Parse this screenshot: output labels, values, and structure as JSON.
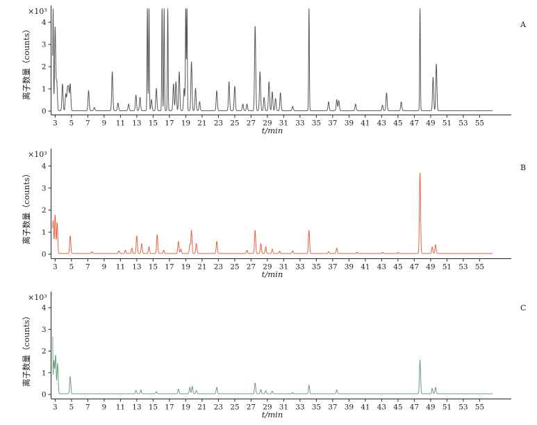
{
  "chart_data": [
    {
      "type": "line",
      "panel_label": "A",
      "scale_label": "×10³",
      "xlabel": "t/min",
      "ylabel": "离子数量（counts）",
      "xlim": [
        2.5,
        57
      ],
      "ylim": [
        0,
        4.6
      ],
      "x_ticks": [
        3,
        5,
        7,
        9,
        11,
        13,
        15,
        17,
        19,
        21,
        23,
        25,
        27,
        29,
        31,
        33,
        35,
        37,
        39,
        41,
        43,
        45,
        47,
        49,
        51,
        53,
        55
      ],
      "y_ticks": [
        0,
        1,
        2,
        3,
        4
      ],
      "color": "#555555",
      "baseline": 0.02,
      "peaks": [
        {
          "x": 2.75,
          "y": 4.6
        },
        {
          "x": 3.0,
          "y": 3.75
        },
        {
          "x": 3.2,
          "y": 1.3
        },
        {
          "x": 3.9,
          "y": 1.2
        },
        {
          "x": 4.3,
          "y": 0.75
        },
        {
          "x": 4.5,
          "y": 0.95
        },
        {
          "x": 4.65,
          "y": 1.0
        },
        {
          "x": 4.85,
          "y": 1.2
        },
        {
          "x": 7.1,
          "y": 0.9
        },
        {
          "x": 7.8,
          "y": 0.15
        },
        {
          "x": 10.0,
          "y": 1.75
        },
        {
          "x": 10.7,
          "y": 0.35
        },
        {
          "x": 12.0,
          "y": 0.3
        },
        {
          "x": 12.9,
          "y": 0.7
        },
        {
          "x": 13.4,
          "y": 0.6
        },
        {
          "x": 14.3,
          "y": 4.6
        },
        {
          "x": 14.5,
          "y": 4.6
        },
        {
          "x": 14.8,
          "y": 0.5
        },
        {
          "x": 15.4,
          "y": 1.0
        },
        {
          "x": 16.1,
          "y": 4.6
        },
        {
          "x": 16.35,
          "y": 4.6
        },
        {
          "x": 16.8,
          "y": 4.6
        },
        {
          "x": 17.5,
          "y": 1.2
        },
        {
          "x": 17.8,
          "y": 1.3
        },
        {
          "x": 18.2,
          "y": 1.75
        },
        {
          "x": 18.8,
          "y": 1.0
        },
        {
          "x": 19.0,
          "y": 4.6
        },
        {
          "x": 19.15,
          "y": 4.6
        },
        {
          "x": 19.7,
          "y": 2.2
        },
        {
          "x": 20.2,
          "y": 1.0
        },
        {
          "x": 20.7,
          "y": 0.4
        },
        {
          "x": 22.8,
          "y": 0.9
        },
        {
          "x": 24.3,
          "y": 1.3
        },
        {
          "x": 25.0,
          "y": 1.1
        },
        {
          "x": 26.0,
          "y": 0.3
        },
        {
          "x": 26.5,
          "y": 0.3
        },
        {
          "x": 27.5,
          "y": 3.8
        },
        {
          "x": 28.1,
          "y": 1.75
        },
        {
          "x": 28.6,
          "y": 0.6
        },
        {
          "x": 29.2,
          "y": 1.3
        },
        {
          "x": 29.6,
          "y": 0.85
        },
        {
          "x": 30.0,
          "y": 0.55
        },
        {
          "x": 30.6,
          "y": 0.8
        },
        {
          "x": 32.1,
          "y": 0.2
        },
        {
          "x": 34.1,
          "y": 4.6
        },
        {
          "x": 36.5,
          "y": 0.4
        },
        {
          "x": 37.5,
          "y": 0.5
        },
        {
          "x": 37.75,
          "y": 0.45
        },
        {
          "x": 39.8,
          "y": 0.3
        },
        {
          "x": 43.1,
          "y": 0.25
        },
        {
          "x": 43.6,
          "y": 0.8
        },
        {
          "x": 45.4,
          "y": 0.4
        },
        {
          "x": 47.7,
          "y": 4.6
        },
        {
          "x": 49.3,
          "y": 1.5
        },
        {
          "x": 49.7,
          "y": 2.1
        }
      ]
    },
    {
      "type": "line",
      "panel_label": "B",
      "scale_label": "×10³",
      "xlabel": "t/min",
      "ylabel": "离子数量（counts）",
      "xlim": [
        2.5,
        57
      ],
      "ylim": [
        0,
        4.6
      ],
      "x_ticks": [
        3,
        5,
        7,
        9,
        11,
        13,
        15,
        17,
        19,
        21,
        23,
        25,
        27,
        29,
        31,
        33,
        35,
        37,
        39,
        41,
        43,
        45,
        47,
        49,
        51,
        53,
        55
      ],
      "y_ticks": [
        0,
        1,
        2,
        3,
        4
      ],
      "color": "#e8623f",
      "baseline": 0.03,
      "peaks": [
        {
          "x": 2.75,
          "y": 1.5
        },
        {
          "x": 3.0,
          "y": 1.75
        },
        {
          "x": 3.25,
          "y": 1.4
        },
        {
          "x": 4.85,
          "y": 0.8
        },
        {
          "x": 7.5,
          "y": 0.08
        },
        {
          "x": 10.8,
          "y": 0.12
        },
        {
          "x": 11.6,
          "y": 0.15
        },
        {
          "x": 12.4,
          "y": 0.25
        },
        {
          "x": 13.0,
          "y": 0.8
        },
        {
          "x": 13.6,
          "y": 0.45
        },
        {
          "x": 14.5,
          "y": 0.3
        },
        {
          "x": 15.5,
          "y": 0.85
        },
        {
          "x": 16.3,
          "y": 0.15
        },
        {
          "x": 18.1,
          "y": 0.55
        },
        {
          "x": 18.4,
          "y": 0.2
        },
        {
          "x": 19.5,
          "y": 0.4
        },
        {
          "x": 19.7,
          "y": 1.05
        },
        {
          "x": 20.3,
          "y": 0.45
        },
        {
          "x": 22.8,
          "y": 0.55
        },
        {
          "x": 26.5,
          "y": 0.15
        },
        {
          "x": 27.5,
          "y": 1.05
        },
        {
          "x": 28.2,
          "y": 0.45
        },
        {
          "x": 28.8,
          "y": 0.3
        },
        {
          "x": 29.6,
          "y": 0.2
        },
        {
          "x": 30.5,
          "y": 0.1
        },
        {
          "x": 32.1,
          "y": 0.12
        },
        {
          "x": 34.1,
          "y": 1.05
        },
        {
          "x": 36.5,
          "y": 0.08
        },
        {
          "x": 37.5,
          "y": 0.25
        },
        {
          "x": 40.0,
          "y": 0.06
        },
        {
          "x": 43.1,
          "y": 0.05
        },
        {
          "x": 45.0,
          "y": 0.05
        },
        {
          "x": 47.7,
          "y": 3.65
        },
        {
          "x": 49.2,
          "y": 0.3
        },
        {
          "x": 49.6,
          "y": 0.4
        }
      ]
    },
    {
      "type": "line",
      "panel_label": "C",
      "scale_label": "×10³",
      "xlabel": "t/min",
      "ylabel": "离子数量（counts）",
      "xlim": [
        2.5,
        57
      ],
      "ylim": [
        0,
        4.6
      ],
      "x_ticks": [
        3,
        5,
        7,
        9,
        11,
        13,
        15,
        17,
        19,
        21,
        23,
        25,
        27,
        29,
        31,
        33,
        35,
        37,
        39,
        41,
        43,
        45,
        47,
        49,
        51,
        53,
        55
      ],
      "y_ticks": [
        0,
        1,
        2,
        3,
        4
      ],
      "color": "#6b9e7c",
      "baseline": 0.03,
      "peaks": [
        {
          "x": 2.65,
          "y": 4.6
        },
        {
          "x": 2.85,
          "y": 1.5
        },
        {
          "x": 3.05,
          "y": 1.75
        },
        {
          "x": 3.3,
          "y": 1.4
        },
        {
          "x": 4.85,
          "y": 0.8
        },
        {
          "x": 12.9,
          "y": 0.15
        },
        {
          "x": 13.5,
          "y": 0.18
        },
        {
          "x": 15.4,
          "y": 0.1
        },
        {
          "x": 18.1,
          "y": 0.22
        },
        {
          "x": 19.5,
          "y": 0.3
        },
        {
          "x": 19.8,
          "y": 0.35
        },
        {
          "x": 20.3,
          "y": 0.15
        },
        {
          "x": 22.8,
          "y": 0.3
        },
        {
          "x": 27.5,
          "y": 0.5
        },
        {
          "x": 28.2,
          "y": 0.2
        },
        {
          "x": 28.8,
          "y": 0.15
        },
        {
          "x": 29.6,
          "y": 0.12
        },
        {
          "x": 32.1,
          "y": 0.06
        },
        {
          "x": 34.1,
          "y": 0.4
        },
        {
          "x": 37.5,
          "y": 0.18
        },
        {
          "x": 47.7,
          "y": 1.55
        },
        {
          "x": 49.2,
          "y": 0.25
        },
        {
          "x": 49.6,
          "y": 0.3
        }
      ]
    }
  ]
}
